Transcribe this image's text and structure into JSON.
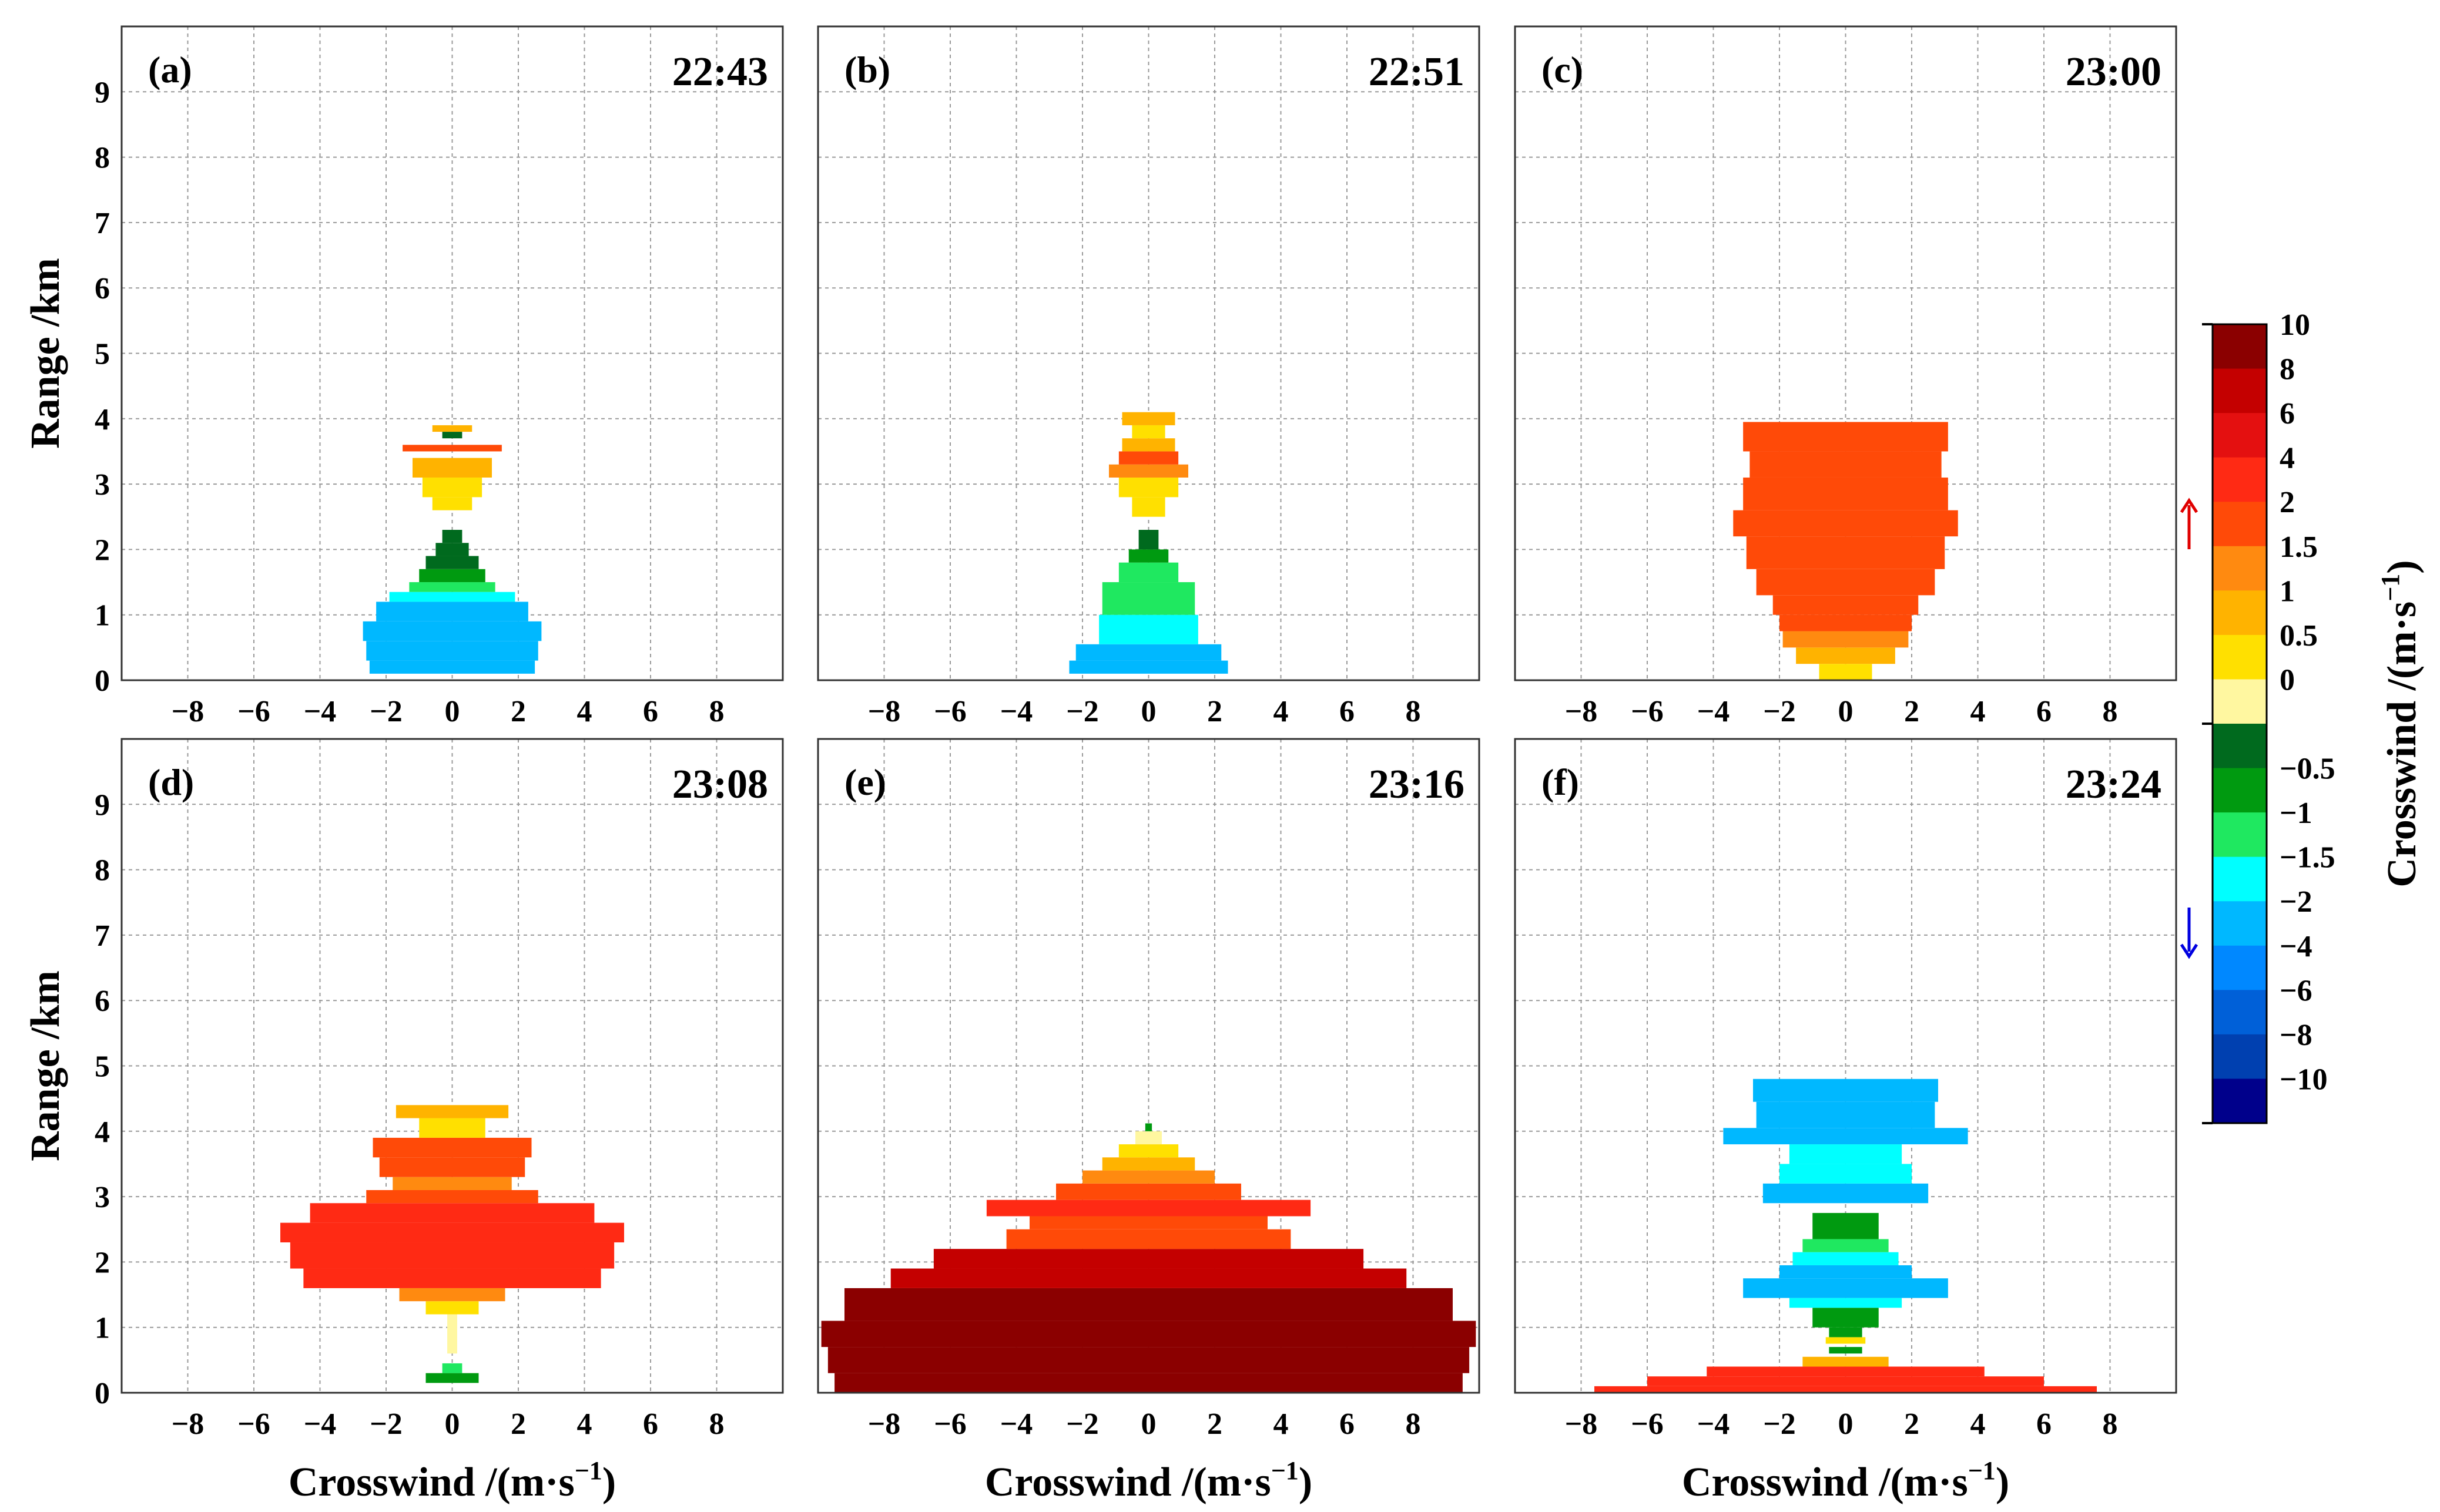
{
  "chart_data": {
    "type": "heatmap",
    "description_of_encoding": "Each panel: horizontal filled bars centred on crosswind 0; bar half-width (m/s) per range band, fill colour = crosswind magnitude class.",
    "xlabel": "Crosswind /(m·s",
    "xlabel_sup": "−1",
    "xlabel_close": ")",
    "ylabel": "Range /km",
    "xticks": [
      "−8",
      "−6",
      "−4",
      "−2",
      "0",
      "2",
      "4",
      "6",
      "8"
    ],
    "xtick_values": [
      -8,
      -6,
      -4,
      -2,
      0,
      2,
      4,
      6,
      8
    ],
    "yticks": [
      "0",
      "1",
      "2",
      "3",
      "4",
      "5",
      "6",
      "7",
      "8",
      "9"
    ],
    "xlim": [
      -10,
      10
    ],
    "ylim": [
      0,
      10
    ],
    "colorbar": {
      "label": "Crosswind /(m·s",
      "label_sup": "−1",
      "label_close": ")",
      "ticks": [
        "10",
        "8",
        "6",
        "4",
        "2",
        "1.5",
        "1",
        "0.5",
        "0",
        "−0.5",
        "−1",
        "−1.5",
        "−2",
        "−4",
        "−6",
        "−8",
        "−10"
      ],
      "colors": [
        "#8b0000",
        "#c40000",
        "#e41010",
        "#ff2a14",
        "#ff4a08",
        "#ff8a10",
        "#ffb300",
        "#ffe000",
        "#fff7a0",
        "#006a1e",
        "#009a10",
        "#1fe860",
        "#00ffff",
        "#00b8ff",
        "#0088ff",
        "#0060d8",
        "#0040b0",
        "#00008b"
      ],
      "up_arrow_color": "#e00000",
      "down_arrow_color": "#0000e0"
    },
    "panels": [
      {
        "label": "(a)",
        "time": "22:43",
        "bars": [
          {
            "y0": 0.1,
            "y1": 0.3,
            "hw": 2.5,
            "color": "#00b8ff"
          },
          {
            "y0": 0.3,
            "y1": 0.6,
            "hw": 2.6,
            "color": "#00b8ff"
          },
          {
            "y0": 0.6,
            "y1": 0.9,
            "hw": 2.7,
            "color": "#00b8ff"
          },
          {
            "y0": 0.9,
            "y1": 1.2,
            "hw": 2.3,
            "color": "#00b8ff"
          },
          {
            "y0": 1.2,
            "y1": 1.35,
            "hw": 1.9,
            "color": "#00ffff"
          },
          {
            "y0": 1.35,
            "y1": 1.5,
            "hw": 1.3,
            "color": "#1fe860"
          },
          {
            "y0": 1.5,
            "y1": 1.7,
            "hw": 1.0,
            "color": "#009a10"
          },
          {
            "y0": 1.7,
            "y1": 1.9,
            "hw": 0.8,
            "color": "#006a1e"
          },
          {
            "y0": 1.9,
            "y1": 2.1,
            "hw": 0.5,
            "color": "#006a1e"
          },
          {
            "y0": 2.1,
            "y1": 2.3,
            "hw": 0.3,
            "color": "#006a1e"
          },
          {
            "y0": 2.6,
            "y1": 2.8,
            "hw": 0.6,
            "color": "#ffe000"
          },
          {
            "y0": 2.8,
            "y1": 3.1,
            "hw": 0.9,
            "color": "#ffe000"
          },
          {
            "y0": 3.1,
            "y1": 3.4,
            "hw": 1.2,
            "color": "#ffb300"
          },
          {
            "y0": 3.5,
            "y1": 3.6,
            "hw": 1.5,
            "color": "#ff4a08"
          },
          {
            "y0": 3.7,
            "y1": 3.8,
            "hw": 0.3,
            "color": "#006a1e"
          },
          {
            "y0": 3.8,
            "y1": 3.9,
            "hw": 0.6,
            "color": "#ffb300"
          }
        ]
      },
      {
        "label": "(b)",
        "time": "22:51",
        "bars": [
          {
            "y0": 0.1,
            "y1": 0.3,
            "hw": 2.4,
            "color": "#00b8ff"
          },
          {
            "y0": 0.3,
            "y1": 0.55,
            "hw": 2.2,
            "color": "#00b8ff"
          },
          {
            "y0": 0.55,
            "y1": 1.0,
            "hw": 1.5,
            "color": "#00ffff"
          },
          {
            "y0": 1.0,
            "y1": 1.5,
            "hw": 1.4,
            "color": "#1fe860"
          },
          {
            "y0": 1.5,
            "y1": 1.8,
            "hw": 0.9,
            "color": "#1fe860"
          },
          {
            "y0": 1.8,
            "y1": 2.0,
            "hw": 0.6,
            "color": "#009a10"
          },
          {
            "y0": 2.0,
            "y1": 2.3,
            "hw": 0.3,
            "color": "#006a1e"
          },
          {
            "y0": 2.5,
            "y1": 2.8,
            "hw": 0.5,
            "color": "#ffe000"
          },
          {
            "y0": 2.8,
            "y1": 3.1,
            "hw": 0.9,
            "color": "#ffe000"
          },
          {
            "y0": 3.1,
            "y1": 3.3,
            "hw": 1.2,
            "color": "#ff8a10"
          },
          {
            "y0": 3.3,
            "y1": 3.5,
            "hw": 0.9,
            "color": "#ff4a08"
          },
          {
            "y0": 3.5,
            "y1": 3.7,
            "hw": 0.8,
            "color": "#ffb300"
          },
          {
            "y0": 3.7,
            "y1": 3.9,
            "hw": 0.5,
            "color": "#ffe000"
          },
          {
            "y0": 3.9,
            "y1": 4.1,
            "hw": 0.8,
            "color": "#ffb300"
          }
        ]
      },
      {
        "label": "(c)",
        "time": "23:00",
        "bars": [
          {
            "y0": 0.0,
            "y1": 0.25,
            "hw": 0.8,
            "color": "#ffe000"
          },
          {
            "y0": 0.25,
            "y1": 0.5,
            "hw": 1.5,
            "color": "#ffb300"
          },
          {
            "y0": 0.5,
            "y1": 0.75,
            "hw": 1.9,
            "color": "#ff8a10"
          },
          {
            "y0": 0.75,
            "y1": 1.0,
            "hw": 2.0,
            "color": "#ff4a08"
          },
          {
            "y0": 1.0,
            "y1": 1.3,
            "hw": 2.2,
            "color": "#ff4a08"
          },
          {
            "y0": 1.3,
            "y1": 1.7,
            "hw": 2.7,
            "color": "#ff4a08"
          },
          {
            "y0": 1.7,
            "y1": 2.2,
            "hw": 3.0,
            "color": "#ff4a08"
          },
          {
            "y0": 2.2,
            "y1": 2.6,
            "hw": 3.4,
            "color": "#ff4a08"
          },
          {
            "y0": 2.6,
            "y1": 3.1,
            "hw": 3.1,
            "color": "#ff4a08"
          },
          {
            "y0": 3.1,
            "y1": 3.5,
            "hw": 2.9,
            "color": "#ff4a08"
          },
          {
            "y0": 3.5,
            "y1": 3.95,
            "hw": 3.1,
            "color": "#ff4a08"
          }
        ]
      },
      {
        "label": "(d)",
        "time": "23:08",
        "bars": [
          {
            "y0": 0.15,
            "y1": 0.3,
            "hw": 0.8,
            "color": "#009a10"
          },
          {
            "y0": 0.3,
            "y1": 0.45,
            "hw": 0.3,
            "color": "#1fe860"
          },
          {
            "y0": 0.6,
            "y1": 1.2,
            "hw": 0.15,
            "color": "#fff7a0"
          },
          {
            "y0": 1.2,
            "y1": 1.4,
            "hw": 0.8,
            "color": "#ffe000"
          },
          {
            "y0": 1.4,
            "y1": 1.6,
            "hw": 1.6,
            "color": "#ff8a10"
          },
          {
            "y0": 1.6,
            "y1": 1.9,
            "hw": 4.5,
            "color": "#ff2a14"
          },
          {
            "y0": 1.9,
            "y1": 2.3,
            "hw": 4.9,
            "color": "#ff2a14"
          },
          {
            "y0": 2.3,
            "y1": 2.6,
            "hw": 5.2,
            "color": "#ff2a14"
          },
          {
            "y0": 2.6,
            "y1": 2.9,
            "hw": 4.3,
            "color": "#ff2a14"
          },
          {
            "y0": 2.9,
            "y1": 3.1,
            "hw": 2.6,
            "color": "#ff4a08"
          },
          {
            "y0": 3.1,
            "y1": 3.3,
            "hw": 1.8,
            "color": "#ff8a10"
          },
          {
            "y0": 3.3,
            "y1": 3.6,
            "hw": 2.2,
            "color": "#ff4a08"
          },
          {
            "y0": 3.6,
            "y1": 3.9,
            "hw": 2.4,
            "color": "#ff4a08"
          },
          {
            "y0": 3.9,
            "y1": 4.2,
            "hw": 1.0,
            "color": "#ffe000"
          },
          {
            "y0": 4.2,
            "y1": 4.4,
            "hw": 1.7,
            "color": "#ffb300"
          }
        ]
      },
      {
        "label": "(e)",
        "time": "23:16",
        "bars": [
          {
            "y0": 0.0,
            "y1": 0.3,
            "hw": 9.5,
            "color": "#8b0000"
          },
          {
            "y0": 0.3,
            "y1": 0.7,
            "hw": 9.7,
            "color": "#8b0000"
          },
          {
            "y0": 0.7,
            "y1": 1.1,
            "hw": 9.9,
            "color": "#8b0000"
          },
          {
            "y0": 1.1,
            "y1": 1.6,
            "hw": 9.2,
            "color": "#8b0000"
          },
          {
            "y0": 1.6,
            "y1": 1.9,
            "hw": 7.8,
            "color": "#c40000"
          },
          {
            "y0": 1.9,
            "y1": 2.2,
            "hw": 6.5,
            "color": "#c40000"
          },
          {
            "y0": 2.2,
            "y1": 2.5,
            "hw": 4.3,
            "color": "#ff4a08"
          },
          {
            "y0": 2.5,
            "y1": 2.7,
            "hw": 3.6,
            "color": "#ff4a08"
          },
          {
            "y0": 2.7,
            "y1": 2.95,
            "hw": 4.9,
            "color": "#ff2a14"
          },
          {
            "y0": 2.95,
            "y1": 3.2,
            "hw": 2.8,
            "color": "#ff4a08"
          },
          {
            "y0": 3.2,
            "y1": 3.4,
            "hw": 2.0,
            "color": "#ff8a10"
          },
          {
            "y0": 3.4,
            "y1": 3.6,
            "hw": 1.4,
            "color": "#ffb300"
          },
          {
            "y0": 3.6,
            "y1": 3.8,
            "hw": 0.9,
            "color": "#ffe000"
          },
          {
            "y0": 3.8,
            "y1": 4.0,
            "hw": 0.4,
            "color": "#fff7a0"
          },
          {
            "y0": 4.0,
            "y1": 4.12,
            "hw": 0.1,
            "color": "#009a10"
          }
        ]
      },
      {
        "label": "(f)",
        "time": "23:24",
        "bars": [
          {
            "y0": 0.0,
            "y1": 0.1,
            "hw": 7.6,
            "color": "#ff2a14"
          },
          {
            "y0": 0.1,
            "y1": 0.25,
            "hw": 6.0,
            "color": "#ff2a14"
          },
          {
            "y0": 0.25,
            "y1": 0.4,
            "hw": 4.2,
            "color": "#ff2a14"
          },
          {
            "y0": 0.4,
            "y1": 0.55,
            "hw": 1.3,
            "color": "#ffb300"
          },
          {
            "y0": 0.6,
            "y1": 0.7,
            "hw": 0.5,
            "color": "#009a10"
          },
          {
            "y0": 0.75,
            "y1": 0.85,
            "hw": 0.6,
            "color": "#ffe000"
          },
          {
            "y0": 0.85,
            "y1": 1.0,
            "hw": 0.5,
            "color": "#009a10"
          },
          {
            "y0": 1.0,
            "y1": 1.3,
            "hw": 1.0,
            "color": "#009a10"
          },
          {
            "y0": 1.3,
            "y1": 1.45,
            "hw": 1.7,
            "color": "#00ffff"
          },
          {
            "y0": 1.45,
            "y1": 1.75,
            "hw": 3.1,
            "color": "#00b8ff"
          },
          {
            "y0": 1.75,
            "y1": 1.95,
            "hw": 2.0,
            "color": "#00b8ff"
          },
          {
            "y0": 1.95,
            "y1": 2.15,
            "hw": 1.6,
            "color": "#00ffff"
          },
          {
            "y0": 2.15,
            "y1": 2.35,
            "hw": 1.3,
            "color": "#1fe860"
          },
          {
            "y0": 2.35,
            "y1": 2.75,
            "hw": 1.0,
            "color": "#009a10"
          },
          {
            "y0": 2.9,
            "y1": 3.2,
            "hw": 2.5,
            "color": "#00b8ff"
          },
          {
            "y0": 3.2,
            "y1": 3.5,
            "hw": 2.0,
            "color": "#00ffff"
          },
          {
            "y0": 3.5,
            "y1": 3.8,
            "hw": 1.7,
            "color": "#00ffff"
          },
          {
            "y0": 3.8,
            "y1": 4.05,
            "hw": 3.7,
            "color": "#00b8ff"
          },
          {
            "y0": 4.05,
            "y1": 4.45,
            "hw": 2.7,
            "color": "#00b8ff"
          },
          {
            "y0": 4.45,
            "y1": 4.8,
            "hw": 2.8,
            "color": "#00b8ff"
          }
        ]
      }
    ]
  }
}
